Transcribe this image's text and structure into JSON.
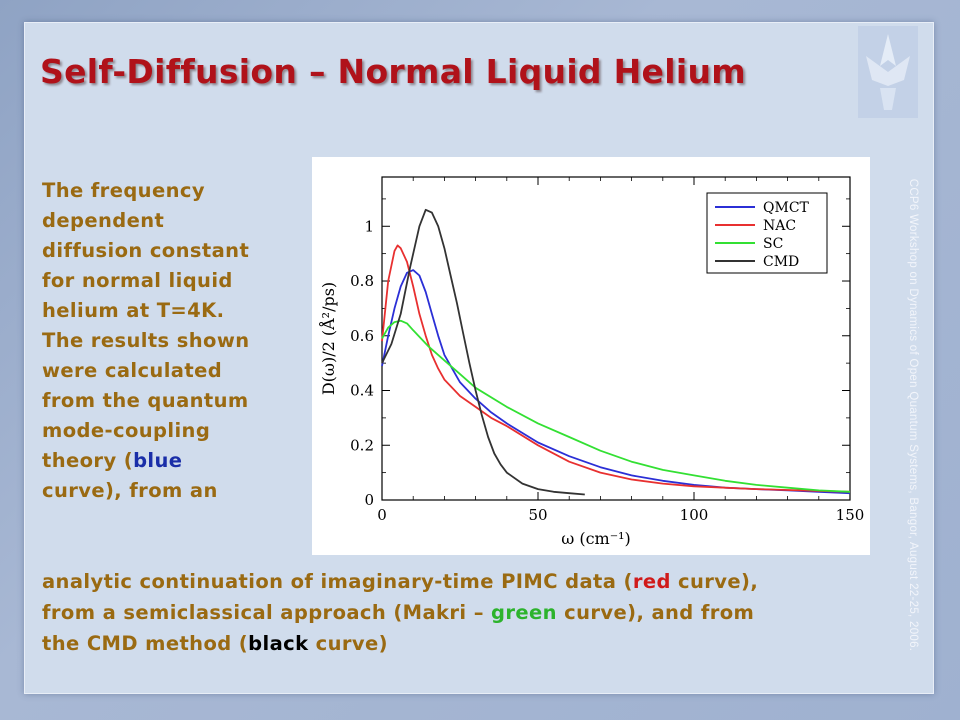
{
  "slide": {
    "title": "Self-Diffusion – Normal Liquid Helium",
    "footer": "CCP6 Workshop on Dynamics of Open Quantum Systems, Bangor, August 22-25, 2006."
  },
  "text": {
    "left_lines": [
      "The frequency",
      "dependent",
      "diffusion constant",
      "for normal liquid",
      "helium at T=4K.",
      "The results shown",
      "were calculated",
      "from the quantum",
      "mode-coupling"
    ],
    "theory_open": "theory (",
    "blue_word": "blue",
    "curve_from_an": "curve), from an",
    "line1_a": "analytic continuation of imaginary-time PIMC data (",
    "red_word": "red",
    "line1_b": " curve),",
    "line2_a": "from a semiclassical approach (Makri – ",
    "green_word": "green",
    "line2_b": " curve), and from",
    "line3_a": "the CMD method (",
    "black_word": "black",
    "line3_b": " curve)"
  },
  "chart_data": {
    "type": "line",
    "xlabel": "ω (cm⁻¹)",
    "ylabel": "D(ω)/2 (Å²/ps)",
    "xlim": [
      0,
      150
    ],
    "ylim": [
      0,
      1.18
    ],
    "xticks": [
      0,
      50,
      100,
      150
    ],
    "yticks": [
      0,
      0.2,
      0.4,
      0.6,
      0.8,
      1
    ],
    "xtick_labels": [
      "0",
      "50",
      "100",
      "150"
    ],
    "ytick_labels": [
      "0",
      "0.2",
      "0.4",
      "0.6",
      "0.8",
      "1"
    ],
    "legend_position": "top-right",
    "series": [
      {
        "name": "QMCT",
        "color": "#2b2fd6",
        "x": [
          0,
          2,
          4,
          6,
          8,
          10,
          12,
          14,
          16,
          18,
          20,
          25,
          30,
          35,
          40,
          50,
          60,
          70,
          80,
          90,
          100,
          110,
          120,
          130,
          140,
          150
        ],
        "y": [
          0.49,
          0.6,
          0.7,
          0.78,
          0.83,
          0.84,
          0.82,
          0.76,
          0.68,
          0.6,
          0.53,
          0.43,
          0.37,
          0.32,
          0.28,
          0.21,
          0.16,
          0.12,
          0.09,
          0.07,
          0.055,
          0.045,
          0.04,
          0.035,
          0.03,
          0.025
        ]
      },
      {
        "name": "NAC",
        "color": "#e83030",
        "x": [
          0,
          2,
          4,
          5,
          6,
          8,
          10,
          12,
          14,
          16,
          18,
          20,
          25,
          30,
          35,
          40,
          50,
          60,
          70,
          80,
          90,
          100,
          120,
          150
        ],
        "y": [
          0.58,
          0.8,
          0.91,
          0.93,
          0.92,
          0.87,
          0.78,
          0.68,
          0.6,
          0.53,
          0.48,
          0.44,
          0.38,
          0.34,
          0.3,
          0.27,
          0.2,
          0.14,
          0.1,
          0.075,
          0.06,
          0.05,
          0.04,
          0.03
        ]
      },
      {
        "name": "SC",
        "color": "#33e033",
        "x": [
          0,
          2,
          4,
          6,
          8,
          10,
          15,
          20,
          25,
          30,
          40,
          50,
          60,
          70,
          80,
          90,
          100,
          110,
          120,
          130,
          140,
          150
        ],
        "y": [
          0.59,
          0.63,
          0.65,
          0.655,
          0.645,
          0.62,
          0.56,
          0.51,
          0.46,
          0.41,
          0.34,
          0.28,
          0.23,
          0.18,
          0.14,
          0.11,
          0.09,
          0.07,
          0.055,
          0.045,
          0.035,
          0.03
        ]
      },
      {
        "name": "CMD",
        "color": "#333333",
        "x": [
          0,
          3,
          6,
          9,
          12,
          14,
          16,
          18,
          20,
          22,
          24,
          26,
          28,
          30,
          32,
          34,
          36,
          38,
          40,
          45,
          50,
          55,
          60,
          65
        ],
        "y": [
          0.5,
          0.57,
          0.68,
          0.85,
          1.0,
          1.06,
          1.05,
          1.0,
          0.92,
          0.82,
          0.72,
          0.61,
          0.5,
          0.4,
          0.31,
          0.23,
          0.17,
          0.13,
          0.1,
          0.06,
          0.04,
          0.03,
          0.025,
          0.02
        ]
      }
    ]
  }
}
